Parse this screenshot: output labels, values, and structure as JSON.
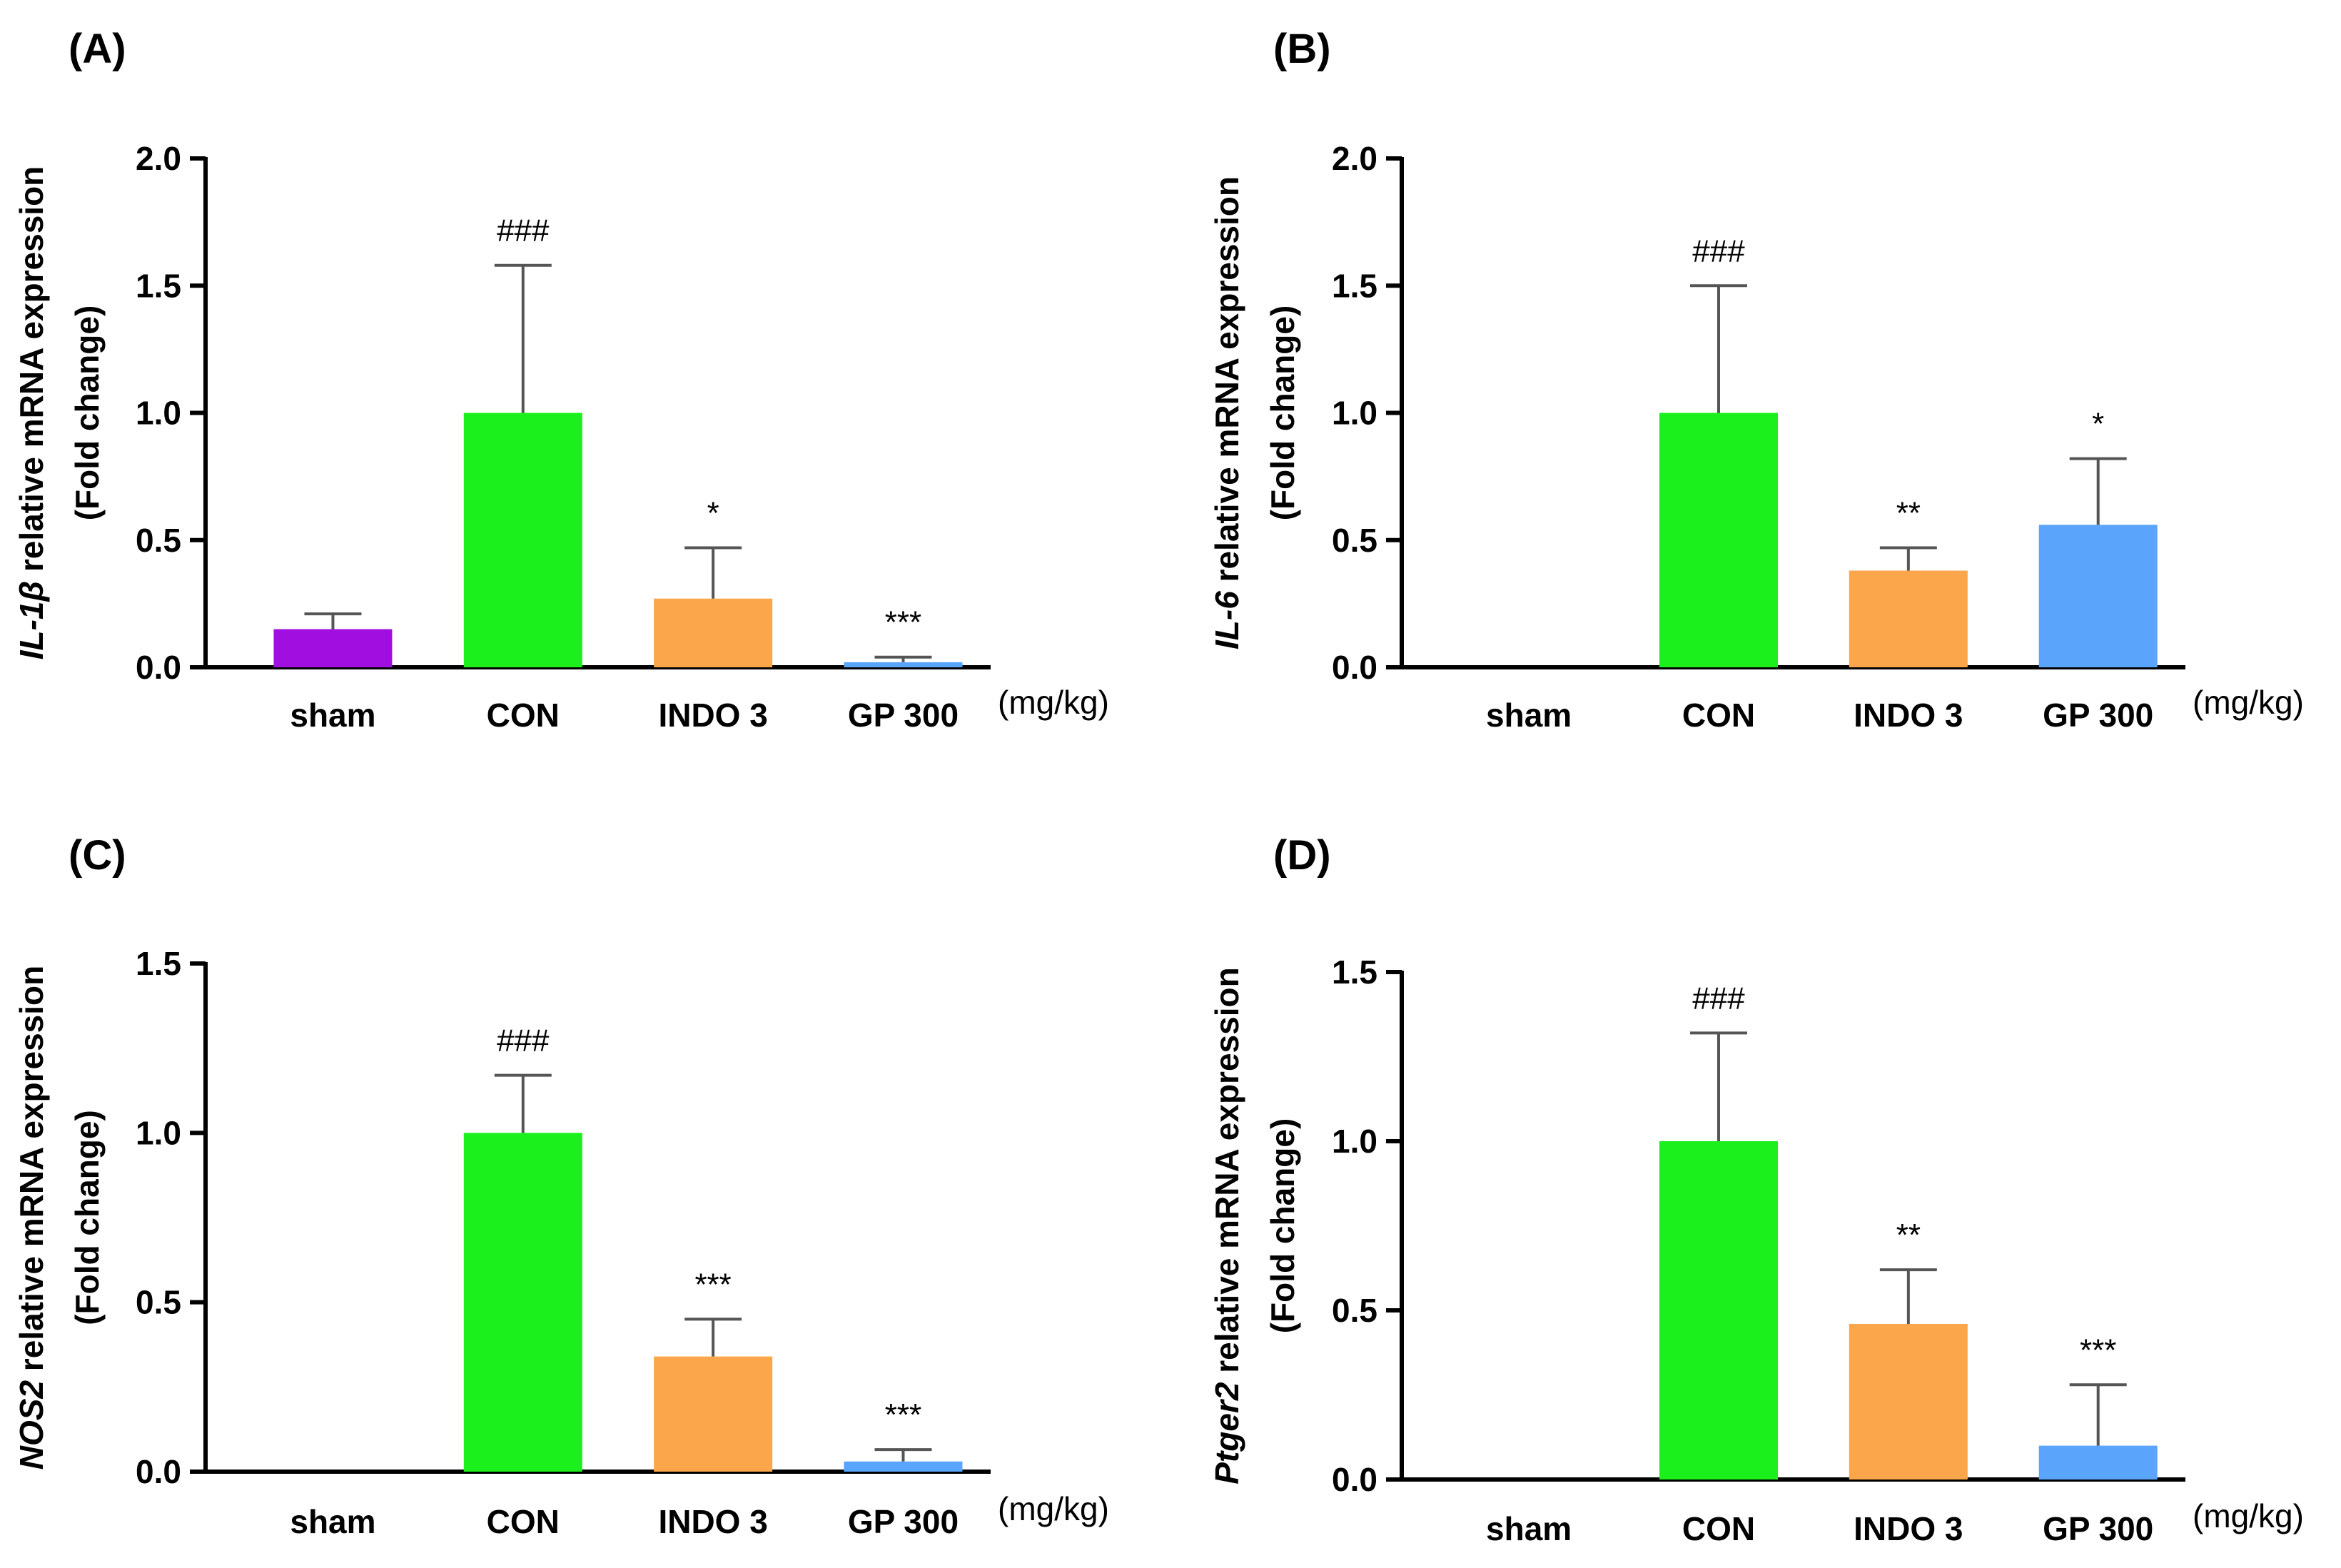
{
  "chart_data": [
    {
      "type": "bar",
      "panel_label": "(A)",
      "ylabel_gene": "IL-1β",
      "ylabel_rest": " relative mRNA expression",
      "ylabel_line2": "(Fold change)",
      "categories": [
        "sham",
        "CON",
        "INDO 3",
        "GP 300"
      ],
      "unit": "(mg/kg)",
      "values": [
        0.15,
        1.0,
        0.27,
        0.02
      ],
      "errors": [
        0.06,
        0.58,
        0.2,
        0.02
      ],
      "significance": [
        "",
        "###",
        "*",
        "***"
      ],
      "ylim": [
        0,
        2.0
      ],
      "yticks": [
        "0.0",
        "0.5",
        "1.0",
        "1.5",
        "2.0"
      ],
      "colors": [
        "#a10fe0",
        "#1cf01c",
        "#fca64c",
        "#5aa5fb"
      ],
      "grid": false
    },
    {
      "type": "bar",
      "panel_label": "(B)",
      "ylabel_gene": "IL-6",
      "ylabel_rest": " relative mRNA expression",
      "ylabel_line2": "(Fold change)",
      "categories": [
        "sham",
        "CON",
        "INDO 3",
        "GP 300"
      ],
      "unit": "(mg/kg)",
      "values": [
        0.0,
        1.0,
        0.38,
        0.56
      ],
      "errors": [
        0.0,
        0.5,
        0.09,
        0.26
      ],
      "significance": [
        "",
        "###",
        "**",
        "*"
      ],
      "ylim": [
        0,
        2.0
      ],
      "yticks": [
        "0.0",
        "0.5",
        "1.0",
        "1.5",
        "2.0"
      ],
      "colors": [
        "#a10fe0",
        "#1cf01c",
        "#fca64c",
        "#5aa5fb"
      ],
      "grid": false
    },
    {
      "type": "bar",
      "panel_label": "(C)",
      "ylabel_gene": "NOS2",
      "ylabel_rest": " relative mRNA expression",
      "ylabel_line2": "(Fold change)",
      "categories": [
        "sham",
        "CON",
        "INDO 3",
        "GP 300"
      ],
      "unit": "(mg/kg)",
      "values": [
        0.0,
        1.0,
        0.34,
        0.03
      ],
      "errors": [
        0.0,
        0.17,
        0.11,
        0.035
      ],
      "significance": [
        "",
        "###",
        "***",
        "***"
      ],
      "ylim": [
        0,
        1.5
      ],
      "yticks": [
        "0.0",
        "0.5",
        "1.0",
        "1.5"
      ],
      "colors": [
        "#a10fe0",
        "#1cf01c",
        "#fca64c",
        "#5aa5fb"
      ],
      "grid": false
    },
    {
      "type": "bar",
      "panel_label": "(D)",
      "ylabel_gene": "Ptger2",
      "ylabel_rest": " relative mRNA expression",
      "ylabel_line2": "(Fold change)",
      "categories": [
        "sham",
        "CON",
        "INDO 3",
        "GP 300"
      ],
      "unit": "(mg/kg)",
      "values": [
        0.0,
        1.0,
        0.46,
        0.1
      ],
      "errors": [
        0.0,
        0.32,
        0.16,
        0.18
      ],
      "significance": [
        "",
        "###",
        "**",
        "***"
      ],
      "ylim": [
        0,
        1.5
      ],
      "yticks": [
        "0.0",
        "0.5",
        "1.0",
        "1.5"
      ],
      "colors": [
        "#a10fe0",
        "#1cf01c",
        "#fca64c",
        "#5aa5fb"
      ],
      "grid": false
    }
  ]
}
